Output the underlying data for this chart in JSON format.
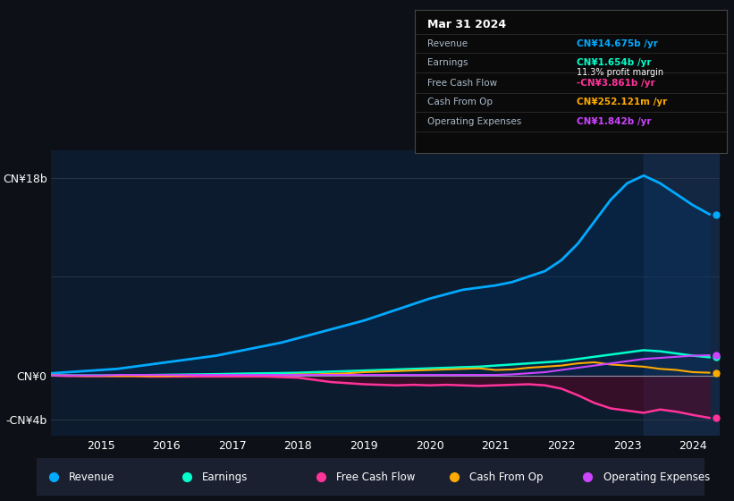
{
  "bg_color": "#0d1117",
  "plot_bg_color": "#0d1b2e",
  "grid_color": "#2a3a4a",
  "zero_line_color": "#8899aa",
  "years": [
    2014.25,
    2014.5,
    2014.75,
    2015.0,
    2015.25,
    2015.5,
    2015.75,
    2016.0,
    2016.25,
    2016.5,
    2016.75,
    2017.0,
    2017.25,
    2017.5,
    2017.75,
    2018.0,
    2018.25,
    2018.5,
    2018.75,
    2019.0,
    2019.25,
    2019.5,
    2019.75,
    2020.0,
    2020.25,
    2020.5,
    2020.75,
    2021.0,
    2021.25,
    2021.5,
    2021.75,
    2022.0,
    2022.25,
    2022.5,
    2022.75,
    2023.0,
    2023.25,
    2023.5,
    2023.75,
    2024.0,
    2024.25
  ],
  "revenue": [
    0.2,
    0.3,
    0.4,
    0.5,
    0.6,
    0.8,
    1.0,
    1.2,
    1.4,
    1.6,
    1.8,
    2.1,
    2.4,
    2.7,
    3.0,
    3.4,
    3.8,
    4.2,
    4.6,
    5.0,
    5.5,
    6.0,
    6.5,
    7.0,
    7.4,
    7.8,
    8.0,
    8.2,
    8.5,
    9.0,
    9.5,
    10.5,
    12.0,
    14.0,
    16.0,
    17.5,
    18.2,
    17.5,
    16.5,
    15.5,
    14.675
  ],
  "earnings": [
    0.0,
    0.0,
    0.0,
    0.0,
    0.0,
    0.02,
    0.04,
    0.06,
    0.08,
    0.1,
    0.12,
    0.15,
    0.18,
    0.2,
    0.22,
    0.25,
    0.3,
    0.35,
    0.4,
    0.45,
    0.5,
    0.55,
    0.6,
    0.65,
    0.7,
    0.75,
    0.8,
    0.9,
    1.0,
    1.1,
    1.2,
    1.3,
    1.5,
    1.7,
    1.9,
    2.1,
    2.3,
    2.2,
    2.0,
    1.8,
    1.654
  ],
  "free_cash_flow": [
    0.0,
    -0.05,
    -0.05,
    -0.05,
    -0.05,
    -0.05,
    -0.1,
    -0.1,
    -0.1,
    -0.1,
    -0.1,
    -0.1,
    -0.1,
    -0.1,
    -0.15,
    -0.2,
    -0.4,
    -0.6,
    -0.7,
    -0.8,
    -0.85,
    -0.9,
    -0.85,
    -0.9,
    -0.85,
    -0.9,
    -0.95,
    -0.9,
    -0.85,
    -0.8,
    -0.9,
    -1.2,
    -1.8,
    -2.5,
    -3.0,
    -3.2,
    -3.4,
    -3.1,
    -3.3,
    -3.6,
    -3.861
  ],
  "cash_from_op": [
    0.0,
    0.0,
    -0.05,
    -0.05,
    -0.05,
    -0.05,
    -0.05,
    -0.05,
    0.0,
    0.05,
    0.05,
    0.05,
    0.05,
    0.05,
    0.05,
    0.1,
    0.1,
    0.15,
    0.2,
    0.3,
    0.35,
    0.4,
    0.45,
    0.5,
    0.55,
    0.6,
    0.65,
    0.5,
    0.55,
    0.7,
    0.8,
    0.9,
    1.1,
    1.2,
    1.0,
    0.9,
    0.8,
    0.6,
    0.5,
    0.3,
    0.252
  ],
  "operating_expenses": [
    0.0,
    0.0,
    0.0,
    0.0,
    0.05,
    0.05,
    0.05,
    0.05,
    0.05,
    0.05,
    0.05,
    0.05,
    0.05,
    0.05,
    0.05,
    0.05,
    0.05,
    0.05,
    0.05,
    0.05,
    0.05,
    0.05,
    0.05,
    0.05,
    0.05,
    0.05,
    0.05,
    0.05,
    0.1,
    0.2,
    0.3,
    0.5,
    0.7,
    0.9,
    1.1,
    1.3,
    1.5,
    1.6,
    1.7,
    1.8,
    1.842
  ],
  "revenue_color": "#00aaff",
  "earnings_color": "#00ffcc",
  "free_cash_flow_color": "#ff3399",
  "cash_from_op_color": "#ffaa00",
  "operating_expenses_color": "#cc44ff",
  "revenue_fill_color": "#003366",
  "free_cash_flow_fill_color": "#660022",
  "ylim_min": -5.5,
  "ylim_max": 20.5,
  "xticks": [
    2015,
    2016,
    2017,
    2018,
    2019,
    2020,
    2021,
    2022,
    2023,
    2024
  ],
  "tooltip_title": "Mar 31 2024",
  "legend_labels": [
    "Revenue",
    "Earnings",
    "Free Cash Flow",
    "Cash From Op",
    "Operating Expenses"
  ],
  "legend_colors": [
    "#00aaff",
    "#00ffcc",
    "#ff3399",
    "#ffaa00",
    "#cc44ff"
  ]
}
